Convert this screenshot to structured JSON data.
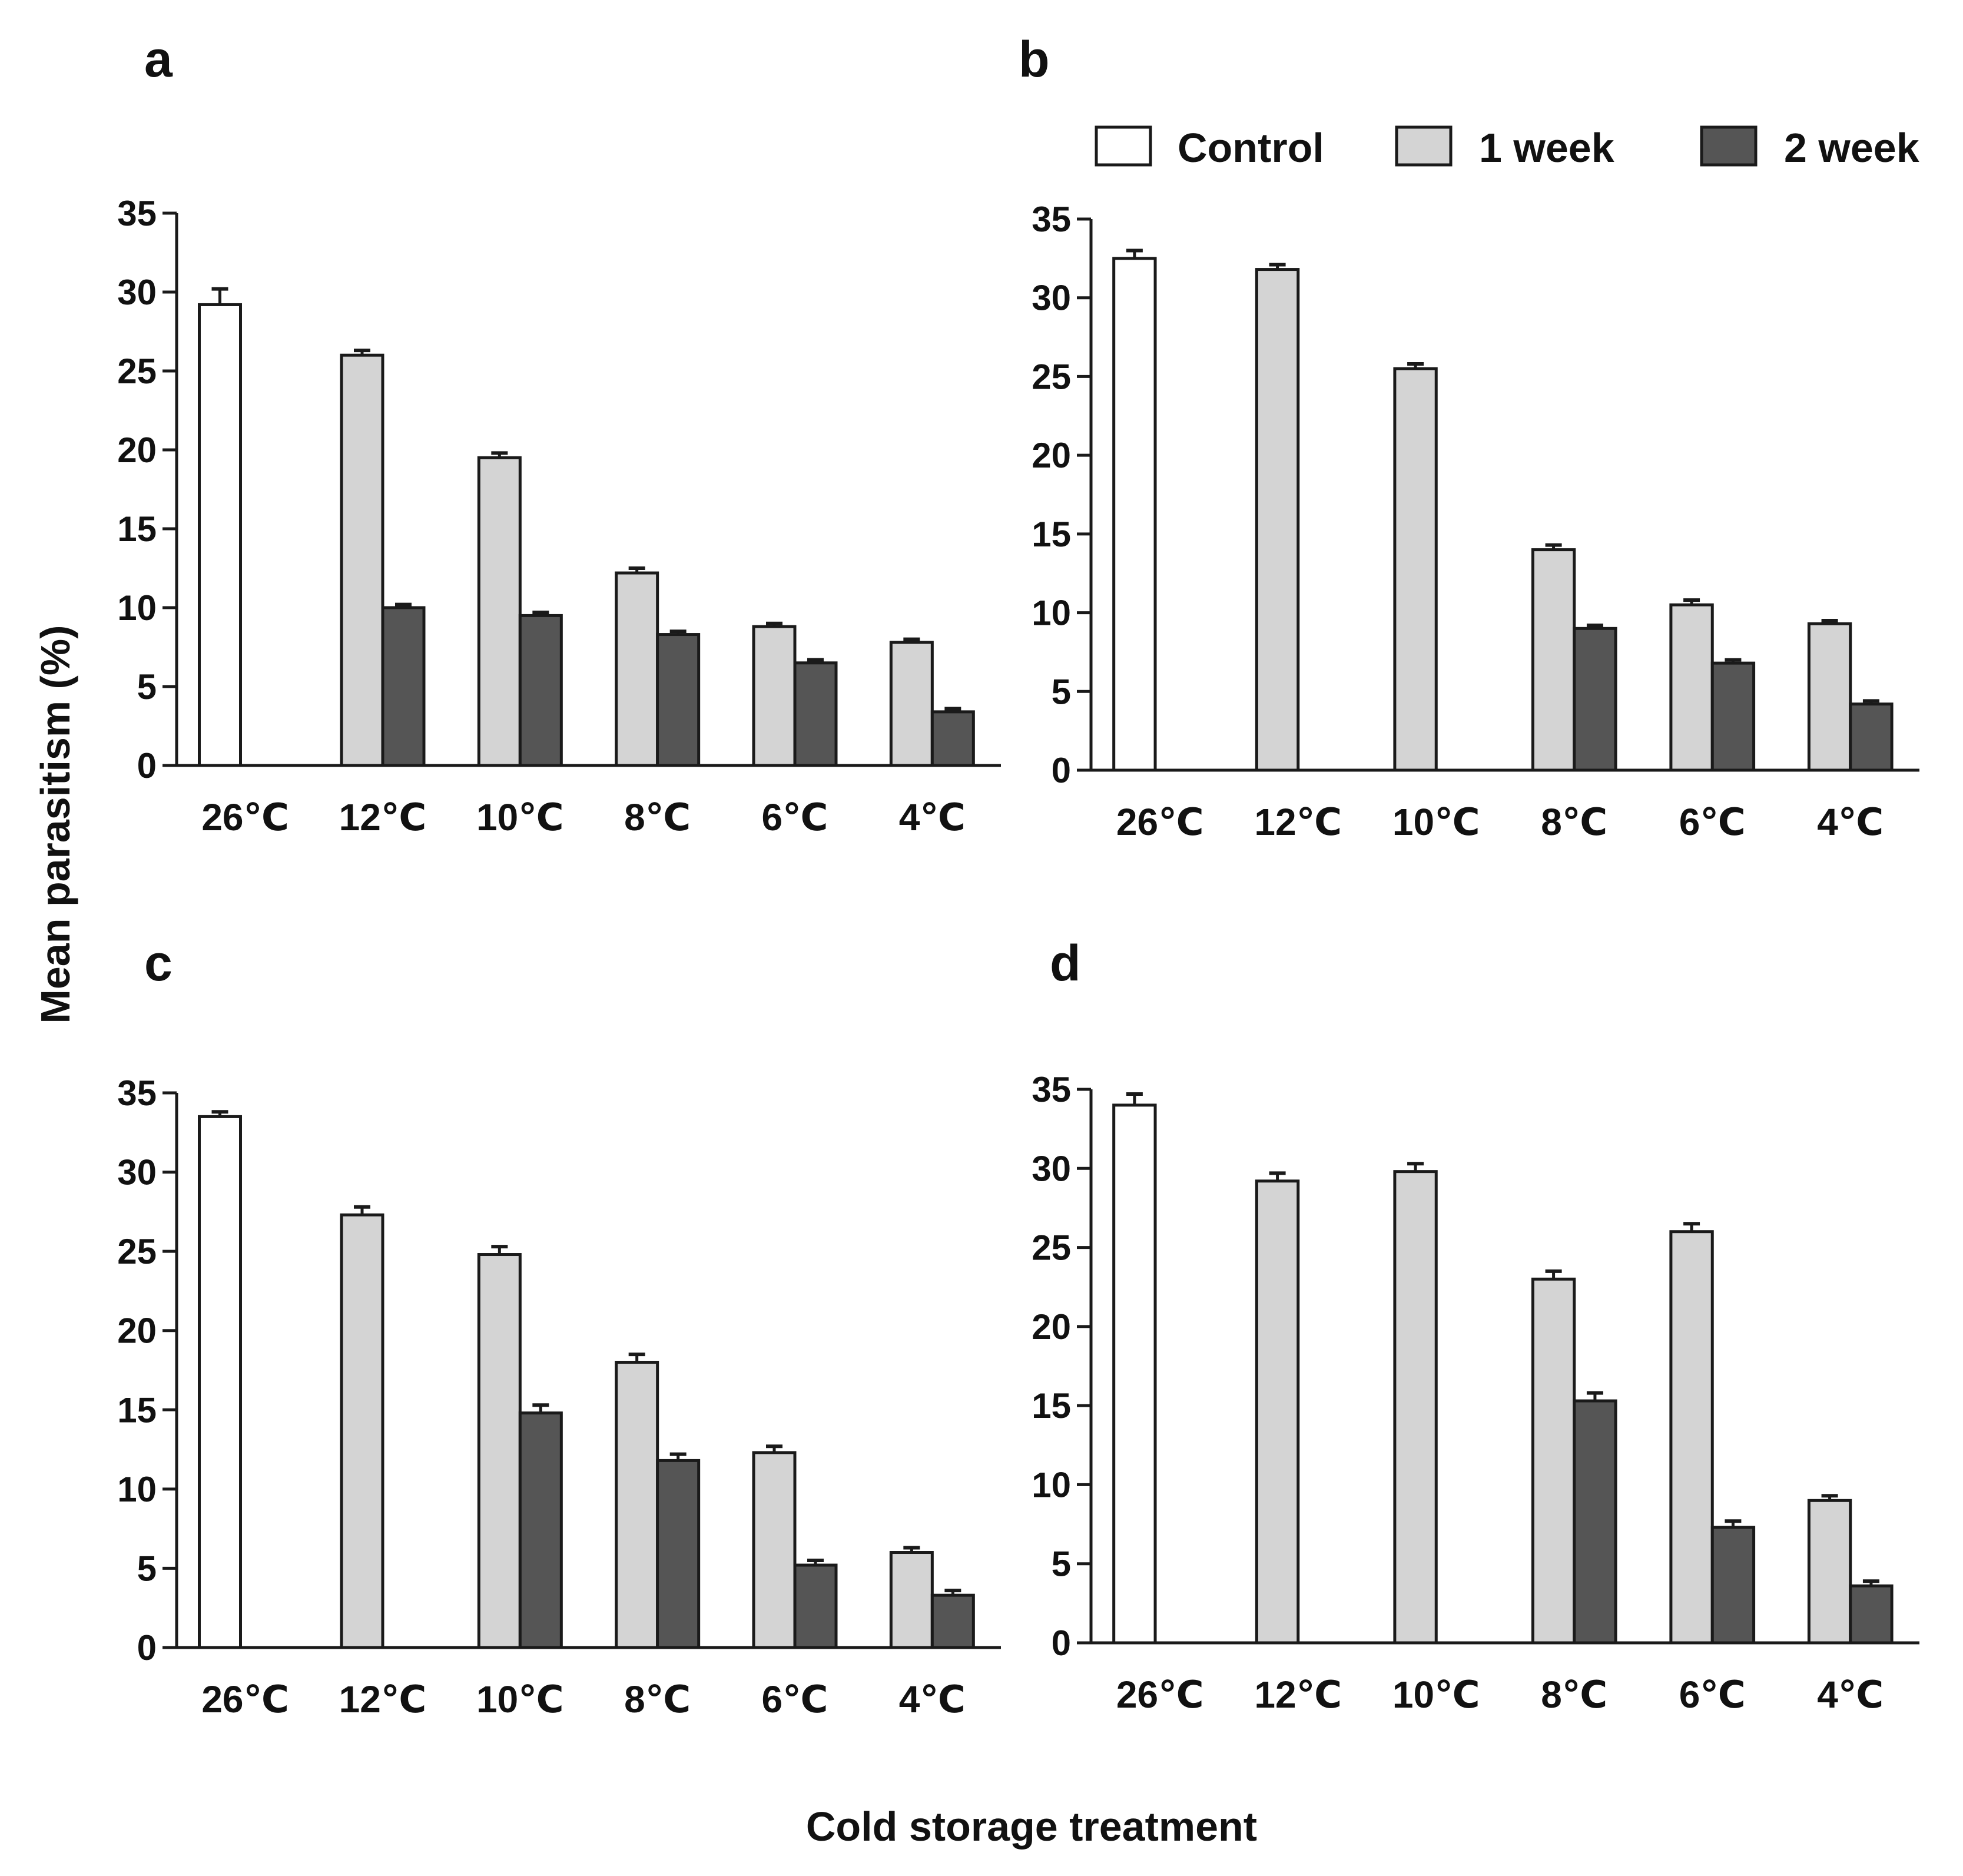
{
  "colors": {
    "control": "#ffffff",
    "week1": "#d4d4d4",
    "week2": "#555555",
    "stroke": "#1a1a1a"
  },
  "figure": {
    "ylabel": "Mean parasitism (%)",
    "xlabel": "Cold storage treatment"
  },
  "legend": {
    "items": [
      {
        "label": "Control",
        "color": "#ffffff"
      },
      {
        "label": "1 week",
        "color": "#d4d4d4"
      },
      {
        "label": "2 week",
        "color": "#555555"
      }
    ]
  },
  "chart_data": [
    {
      "type": "bar",
      "title": "a",
      "categories": [
        "26℃",
        "12℃",
        "10℃",
        "8℃",
        "6℃",
        "4℃"
      ],
      "ylim": [
        0,
        35
      ],
      "yticks": [
        0,
        5,
        10,
        15,
        20,
        25,
        30,
        35
      ],
      "series": [
        {
          "name": "Control",
          "values": [
            29.2,
            null,
            null,
            null,
            null,
            null
          ],
          "errors": [
            1.0,
            null,
            null,
            null,
            null,
            null
          ]
        },
        {
          "name": "1 week",
          "values": [
            null,
            26.0,
            19.5,
            12.2,
            8.8,
            7.8
          ],
          "errors": [
            null,
            0.3,
            0.3,
            0.3,
            0.2,
            0.2
          ]
        },
        {
          "name": "2 week",
          "values": [
            null,
            10.0,
            9.5,
            8.3,
            6.5,
            3.4
          ],
          "errors": [
            null,
            0.2,
            0.2,
            0.2,
            0.2,
            0.2
          ]
        }
      ]
    },
    {
      "type": "bar",
      "title": "b",
      "categories": [
        "26℃",
        "12℃",
        "10℃",
        "8℃",
        "6℃",
        "4℃"
      ],
      "ylim": [
        0,
        35
      ],
      "yticks": [
        0,
        5,
        10,
        15,
        20,
        25,
        30,
        35
      ],
      "series": [
        {
          "name": "Control",
          "values": [
            32.5,
            null,
            null,
            null,
            null,
            null
          ],
          "errors": [
            0.5,
            null,
            null,
            null,
            null,
            null
          ]
        },
        {
          "name": "1 week",
          "values": [
            null,
            31.8,
            25.5,
            14.0,
            10.5,
            9.3
          ],
          "errors": [
            null,
            0.3,
            0.3,
            0.3,
            0.3,
            0.2
          ]
        },
        {
          "name": "2 week",
          "values": [
            null,
            null,
            null,
            9.0,
            6.8,
            4.2
          ],
          "errors": [
            null,
            null,
            null,
            0.2,
            0.2,
            0.2
          ]
        }
      ]
    },
    {
      "type": "bar",
      "title": "c",
      "categories": [
        "26℃",
        "12℃",
        "10℃",
        "8℃",
        "6℃",
        "4℃"
      ],
      "ylim": [
        0,
        35
      ],
      "yticks": [
        0,
        5,
        10,
        15,
        20,
        25,
        30,
        35
      ],
      "series": [
        {
          "name": "Control",
          "values": [
            33.5,
            null,
            null,
            null,
            null,
            null
          ],
          "errors": [
            0.3,
            null,
            null,
            null,
            null,
            null
          ]
        },
        {
          "name": "1 week",
          "values": [
            null,
            27.3,
            24.8,
            18.0,
            12.3,
            6.0
          ],
          "errors": [
            null,
            0.5,
            0.5,
            0.5,
            0.4,
            0.3
          ]
        },
        {
          "name": "2 week",
          "values": [
            null,
            null,
            14.8,
            11.8,
            5.2,
            3.3
          ],
          "errors": [
            null,
            null,
            0.5,
            0.4,
            0.3,
            0.3
          ]
        }
      ]
    },
    {
      "type": "bar",
      "title": "d",
      "categories": [
        "26℃",
        "12℃",
        "10℃",
        "8℃",
        "6℃",
        "4℃"
      ],
      "ylim": [
        0,
        35
      ],
      "yticks": [
        0,
        5,
        10,
        15,
        20,
        25,
        30,
        35
      ],
      "series": [
        {
          "name": "Control",
          "values": [
            34.0,
            null,
            null,
            null,
            null,
            null
          ],
          "errors": [
            0.7,
            null,
            null,
            null,
            null,
            null
          ]
        },
        {
          "name": "1 week",
          "values": [
            null,
            29.2,
            29.8,
            23.0,
            26.0,
            9.0
          ],
          "errors": [
            null,
            0.5,
            0.5,
            0.5,
            0.5,
            0.3
          ]
        },
        {
          "name": "2 week",
          "values": [
            null,
            null,
            null,
            15.3,
            7.3,
            3.6
          ],
          "errors": [
            null,
            null,
            null,
            0.5,
            0.4,
            0.3
          ]
        }
      ]
    }
  ]
}
